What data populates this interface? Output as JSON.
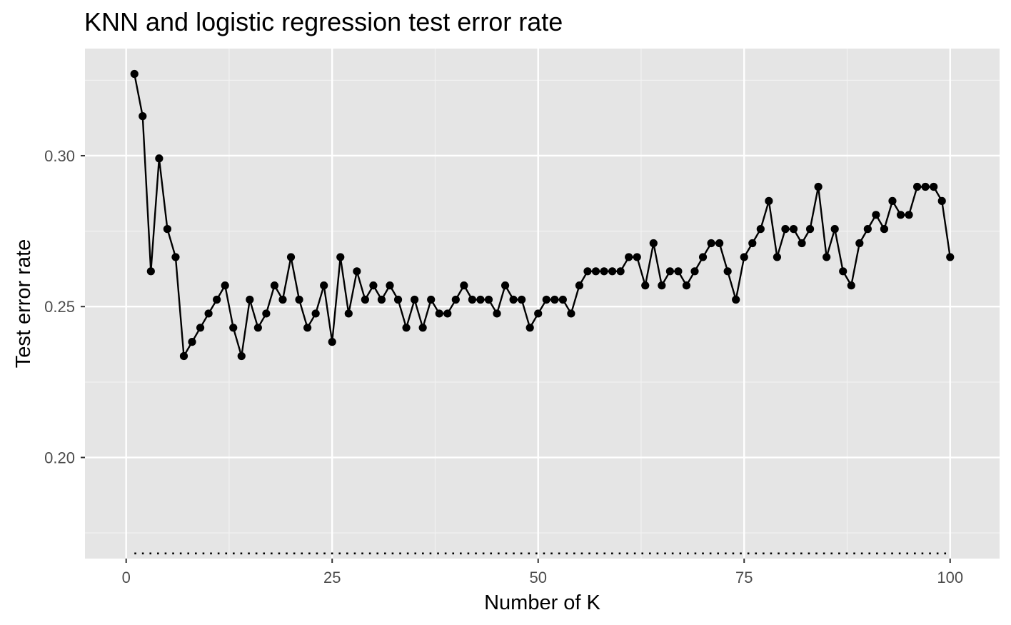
{
  "chart_data": {
    "type": "line",
    "title": "KNN and logistic regression test error rate",
    "xlabel": "Number of K",
    "ylabel": "Test error rate",
    "xlim": [
      -5,
      106
    ],
    "ylim": [
      0.1665,
      0.3355
    ],
    "x_ticks": [
      0,
      25,
      50,
      75,
      100
    ],
    "x_tick_labels": [
      "0",
      "25",
      "50",
      "75",
      "100"
    ],
    "y_ticks": [
      0.2,
      0.25,
      0.3
    ],
    "y_tick_labels": [
      "0.20",
      "0.25",
      "0.30"
    ],
    "grid": true,
    "legend": "none",
    "series": [
      {
        "style": "solid-line-with-points",
        "color": "#000000",
        "x": [
          1,
          2,
          3,
          4,
          5,
          6,
          7,
          8,
          9,
          10,
          11,
          12,
          13,
          14,
          15,
          16,
          17,
          18,
          19,
          20,
          21,
          22,
          23,
          24,
          25,
          26,
          27,
          28,
          29,
          30,
          31,
          32,
          33,
          34,
          35,
          36,
          37,
          38,
          39,
          40,
          41,
          42,
          43,
          44,
          45,
          46,
          47,
          48,
          49,
          50,
          51,
          52,
          53,
          54,
          55,
          56,
          57,
          58,
          59,
          60,
          61,
          62,
          63,
          64,
          65,
          66,
          67,
          68,
          69,
          70,
          71,
          72,
          73,
          74,
          75,
          76,
          77,
          78,
          79,
          80,
          81,
          82,
          83,
          84,
          85,
          86,
          87,
          88,
          89,
          90,
          91,
          92,
          93,
          94,
          95,
          96,
          97,
          98,
          99,
          100
        ],
        "values": [
          0.3271,
          0.3131,
          0.2617,
          0.2991,
          0.2757,
          0.2664,
          0.2336,
          0.2383,
          0.243,
          0.2477,
          0.2523,
          0.257,
          0.243,
          0.2336,
          0.2523,
          0.243,
          0.2477,
          0.257,
          0.2523,
          0.2664,
          0.2523,
          0.243,
          0.2477,
          0.257,
          0.2383,
          0.2664,
          0.2477,
          0.2617,
          0.2523,
          0.257,
          0.2523,
          0.257,
          0.2523,
          0.243,
          0.2523,
          0.243,
          0.2523,
          0.2477,
          0.2477,
          0.2523,
          0.257,
          0.2523,
          0.2523,
          0.2523,
          0.2477,
          0.257,
          0.2523,
          0.2523,
          0.243,
          0.2477,
          0.2523,
          0.2523,
          0.2523,
          0.2477,
          0.257,
          0.2617,
          0.2617,
          0.2617,
          0.2617,
          0.2617,
          0.2664,
          0.2664,
          0.257,
          0.271,
          0.257,
          0.2617,
          0.2617,
          0.257,
          0.2617,
          0.2664,
          0.271,
          0.271,
          0.2617,
          0.2523,
          0.2664,
          0.271,
          0.2757,
          0.285,
          0.2664,
          0.2757,
          0.2757,
          0.271,
          0.2757,
          0.2897,
          0.2664,
          0.2757,
          0.2617,
          0.257,
          0.271,
          0.2757,
          0.2804,
          0.2757,
          0.285,
          0.2804,
          0.2804,
          0.2897,
          0.2897,
          0.2897,
          0.285,
          0.2664
        ]
      },
      {
        "style": "dotted-line",
        "color": "#000000",
        "x": [
          1,
          100
        ],
        "values": [
          0.1682,
          0.1682
        ]
      }
    ]
  }
}
